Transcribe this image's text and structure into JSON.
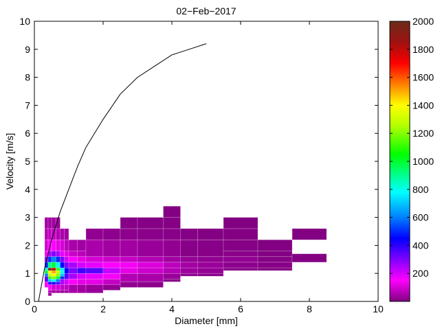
{
  "chart_data": {
    "type": "heatmap",
    "title": "02−Feb−2017",
    "xlabel": "Diameter [mm]",
    "ylabel": "Velocity [m/s]",
    "xlim": [
      0,
      10
    ],
    "ylim": [
      0,
      10
    ],
    "xticks": [
      "0",
      "2",
      "4",
      "6",
      "8",
      "10"
    ],
    "xtick_values": [
      0,
      2,
      4,
      6,
      8,
      10
    ],
    "yticks": [
      "0",
      "1",
      "2",
      "3",
      "4",
      "5",
      "6",
      "7",
      "8",
      "9",
      "10"
    ],
    "ytick_values": [
      0,
      1,
      2,
      3,
      4,
      5,
      6,
      7,
      8,
      9,
      10
    ],
    "grid": false,
    "colorbar": {
      "range": [
        0,
        2000
      ],
      "ticks": [
        "200",
        "400",
        "600",
        "800",
        "1000",
        "1200",
        "1400",
        "1600",
        "1800",
        "2000"
      ],
      "tick_values": [
        200,
        400,
        600,
        800,
        1000,
        1200,
        1400,
        1600,
        1800,
        2000
      ],
      "colormap": [
        [
          0,
          "#800080"
        ],
        [
          150,
          "#ff00ff"
        ],
        [
          300,
          "#8000ff"
        ],
        [
          450,
          "#0000ff"
        ],
        [
          600,
          "#0080ff"
        ],
        [
          780,
          "#00ffff"
        ],
        [
          900,
          "#00ff90"
        ],
        [
          1050,
          "#00ff00"
        ],
        [
          1250,
          "#b0ff00"
        ],
        [
          1400,
          "#ffff00"
        ],
        [
          1550,
          "#ff8000"
        ],
        [
          1700,
          "#ff0000"
        ],
        [
          1850,
          "#a01010"
        ],
        [
          2000,
          "#6b2c1c"
        ]
      ]
    },
    "columns": [
      {
        "d": [
          0.3,
          0.4
        ],
        "v_edges": [
          0.5,
          0.7,
          0.9,
          1.0,
          1.1,
          1.2,
          1.4,
          1.6,
          1.8,
          2.2,
          2.6,
          3.0
        ],
        "counts": [
          150,
          350,
          600,
          1000,
          850,
          500,
          300,
          150,
          100,
          60,
          40
        ]
      },
      {
        "d": [
          0.4,
          0.5
        ],
        "v_edges": [
          0.2,
          0.3,
          0.4,
          0.6,
          0.7,
          0.8,
          0.9,
          1.0,
          1.1,
          1.2,
          1.4,
          1.6,
          1.8,
          2.2,
          2.6,
          3.0
        ],
        "counts": [
          30,
          60,
          150,
          400,
          700,
          1100,
          1300,
          1400,
          1950,
          900,
          500,
          250,
          150,
          80,
          40
        ]
      },
      {
        "d": [
          0.5,
          0.625
        ],
        "v_edges": [
          0.3,
          0.4,
          0.6,
          0.7,
          0.8,
          0.9,
          1.0,
          1.1,
          1.2,
          1.4,
          1.6,
          1.8,
          2.2,
          2.6,
          3.0
        ],
        "counts": [
          40,
          100,
          400,
          800,
          1200,
          1400,
          1500,
          1800,
          1000,
          600,
          300,
          150,
          80,
          40
        ]
      },
      {
        "d": [
          0.625,
          0.75
        ],
        "v_edges": [
          0.3,
          0.4,
          0.6,
          0.7,
          0.8,
          0.9,
          1.0,
          1.1,
          1.2,
          1.4,
          1.6,
          1.8,
          2.2,
          2.6,
          3.0
        ],
        "counts": [
          40,
          100,
          350,
          600,
          1000,
          1200,
          1300,
          1100,
          800,
          500,
          250,
          120,
          60,
          30
        ]
      },
      {
        "d": [
          0.75,
          0.875
        ],
        "v_edges": [
          0.3,
          0.4,
          0.6,
          0.8,
          0.9,
          1.0,
          1.1,
          1.2,
          1.4,
          1.6,
          1.8,
          2.2,
          2.6
        ],
        "counts": [
          30,
          80,
          250,
          500,
          700,
          800,
          750,
          450,
          300,
          180,
          100,
          50
        ]
      },
      {
        "d": [
          0.875,
          1.0
        ],
        "v_edges": [
          0.3,
          0.4,
          0.6,
          0.8,
          1.0,
          1.2,
          1.4,
          1.6,
          1.8,
          2.2,
          2.6
        ],
        "counts": [
          30,
          80,
          200,
          350,
          450,
          300,
          200,
          120,
          70,
          40
        ]
      },
      {
        "d": [
          1.0,
          1.25
        ],
        "v_edges": [
          0.3,
          0.6,
          0.8,
          1.0,
          1.2,
          1.4,
          1.6,
          1.8,
          2.2
        ],
        "counts": [
          50,
          150,
          250,
          300,
          250,
          150,
          90,
          50
        ]
      },
      {
        "d": [
          1.25,
          1.5
        ],
        "v_edges": [
          0.3,
          0.6,
          0.8,
          1.0,
          1.2,
          1.4,
          1.6,
          1.8,
          2.2
        ],
        "counts": [
          40,
          120,
          200,
          380,
          200,
          120,
          70,
          40
        ]
      },
      {
        "d": [
          1.5,
          2.0
        ],
        "v_edges": [
          0.3,
          0.6,
          0.8,
          1.0,
          1.2,
          1.4,
          1.6,
          2.2,
          2.6
        ],
        "counts": [
          30,
          120,
          180,
          350,
          180,
          100,
          50,
          20
        ]
      },
      {
        "d": [
          2.0,
          2.5
        ],
        "v_edges": [
          0.4,
          0.6,
          0.8,
          1.0,
          1.2,
          1.4,
          1.6,
          2.2,
          2.6
        ],
        "counts": [
          20,
          80,
          140,
          220,
          150,
          90,
          40,
          15
        ]
      },
      {
        "d": [
          2.5,
          3.0
        ],
        "v_edges": [
          0.5,
          0.7,
          1.0,
          1.2,
          1.4,
          1.6,
          2.2,
          2.6,
          3.0
        ],
        "counts": [
          20,
          60,
          120,
          140,
          80,
          40,
          15,
          8
        ]
      },
      {
        "d": [
          3.0,
          3.75
        ],
        "v_edges": [
          0.5,
          0.7,
          1.0,
          1.2,
          1.4,
          1.6,
          2.2,
          2.6,
          3.0
        ],
        "counts": [
          15,
          50,
          90,
          110,
          60,
          30,
          12,
          6
        ]
      },
      {
        "d": [
          3.75,
          4.25
        ],
        "v_edges": [
          0.7,
          0.8,
          1.0,
          1.2,
          1.4,
          1.6,
          2.2,
          2.6,
          3.0,
          3.4
        ],
        "counts": [
          10,
          30,
          60,
          70,
          40,
          20,
          10,
          5,
          3
        ]
      },
      {
        "d": [
          4.25,
          4.75
        ],
        "v_edges": [
          0.9,
          1.0,
          1.2,
          1.4,
          1.6,
          2.2,
          2.6
        ],
        "counts": [
          15,
          35,
          40,
          25,
          10,
          5
        ]
      },
      {
        "d": [
          4.75,
          5.5
        ],
        "v_edges": [
          0.9,
          1.0,
          1.2,
          1.4,
          1.6,
          2.2,
          2.6
        ],
        "counts": [
          10,
          25,
          30,
          20,
          8,
          4
        ]
      },
      {
        "d": [
          5.5,
          6.5
        ],
        "v_edges": [
          1.1,
          1.2,
          1.4,
          1.6,
          1.8,
          2.2,
          2.6,
          3.0
        ],
        "counts": [
          8,
          15,
          20,
          12,
          6,
          3,
          2
        ]
      },
      {
        "d": [
          6.5,
          7.5
        ],
        "v_edges": [
          1.1,
          1.2,
          1.4,
          1.6,
          1.8,
          2.2
        ],
        "counts": [
          5,
          8,
          6,
          4,
          2
        ]
      },
      {
        "d": [
          7.5,
          8.5
        ],
        "v_edges": [
          1.4,
          1.7,
          2.2,
          2.6
        ],
        "counts": [
          3,
          null,
          2
        ]
      }
    ],
    "reference_curve": {
      "x": [
        0.12,
        0.3,
        0.5,
        0.75,
        1.0,
        1.25,
        1.5,
        2.0,
        2.5,
        3.0,
        3.5,
        4.0,
        4.5,
        5.0
      ],
      "y": [
        0.0,
        1.2,
        2.2,
        3.2,
        4.0,
        4.8,
        5.5,
        6.5,
        7.4,
        8.0,
        8.4,
        8.8,
        9.0,
        9.2
      ]
    }
  }
}
